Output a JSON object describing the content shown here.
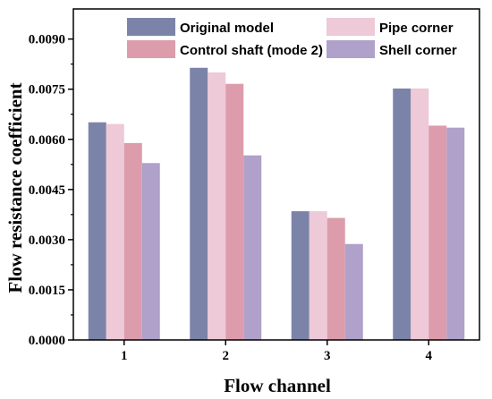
{
  "chart_data": {
    "type": "bar",
    "title": "",
    "xlabel": "Flow channel",
    "ylabel": "Flow resistance coefficient",
    "categories": [
      "1",
      "2",
      "3",
      "4"
    ],
    "ylim": [
      0,
      0.0099
    ],
    "yticks": [
      "0.0000",
      "0.0015",
      "0.0030",
      "0.0045",
      "0.0060",
      "0.0075",
      "0.0090"
    ],
    "grid": false,
    "legend_position": "top",
    "series": [
      {
        "name": "Original model",
        "color": "#7b84a8",
        "values": [
          0.00651,
          0.00814,
          0.00385,
          0.00752
        ]
      },
      {
        "name": "Pipe corner",
        "color": "#eec9d7",
        "values": [
          0.00646,
          0.008,
          0.00385,
          0.00752
        ]
      },
      {
        "name": "Control shaft (mode 2)",
        "color": "#dc9cab",
        "values": [
          0.00589,
          0.00766,
          0.00365,
          0.00641
        ]
      },
      {
        "name": "Shell corner",
        "color": "#afa1c9",
        "values": [
          0.00529,
          0.00552,
          0.00287,
          0.00635
        ]
      }
    ]
  }
}
